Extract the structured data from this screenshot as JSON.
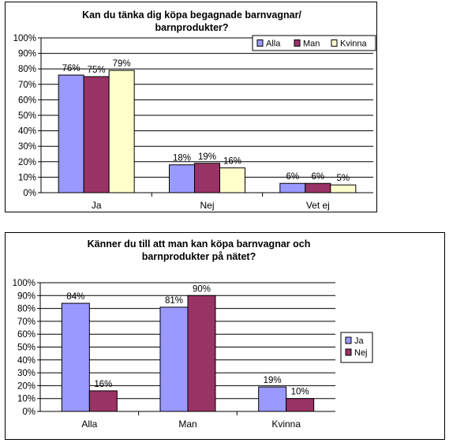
{
  "chart_data": [
    {
      "type": "bar",
      "title_lines": [
        "Kan du tänka dig köpa begagnade barnvagnar/",
        "barnprodukter?"
      ],
      "categories": [
        "Ja",
        "Nej",
        "Vet ej"
      ],
      "series": [
        {
          "name": "Alla",
          "color": "#9999FF",
          "values": [
            76,
            18,
            6
          ],
          "labels": [
            "76%",
            "18%",
            "6%"
          ]
        },
        {
          "name": "Man",
          "color": "#993366",
          "values": [
            75,
            19,
            6
          ],
          "labels": [
            "75%",
            "19%",
            "6%"
          ]
        },
        {
          "name": "Kvinna",
          "color": "#FFFFCC",
          "values": [
            79,
            16,
            5
          ],
          "labels": [
            "79%",
            "16%",
            "5%"
          ]
        }
      ],
      "ylim": [
        0,
        100
      ],
      "yticks": [
        "0%",
        "10%",
        "20%",
        "30%",
        "40%",
        "50%",
        "60%",
        "70%",
        "80%",
        "90%",
        "100%"
      ],
      "grid": true,
      "legend_position": "top-right"
    },
    {
      "type": "bar",
      "title_lines": [
        "Känner du till att man kan köpa barnvagnar och",
        "barnprodukter på nätet?"
      ],
      "categories": [
        "Alla",
        "Man",
        "Kvinna"
      ],
      "series": [
        {
          "name": "Ja",
          "color": "#9999FF",
          "values": [
            84,
            81,
            19
          ],
          "labels": [
            "84%",
            "81%",
            "19%"
          ]
        },
        {
          "name": "Nej",
          "color": "#993366",
          "values": [
            16,
            90,
            10
          ],
          "labels": [
            "16%",
            "90%",
            "10%"
          ]
        }
      ],
      "ylim": [
        0,
        100
      ],
      "yticks": [
        "0%",
        "10%",
        "20%",
        "30%",
        "40%",
        "50%",
        "60%",
        "70%",
        "80%",
        "90%",
        "100%"
      ],
      "grid": true,
      "legend_position": "right"
    }
  ]
}
